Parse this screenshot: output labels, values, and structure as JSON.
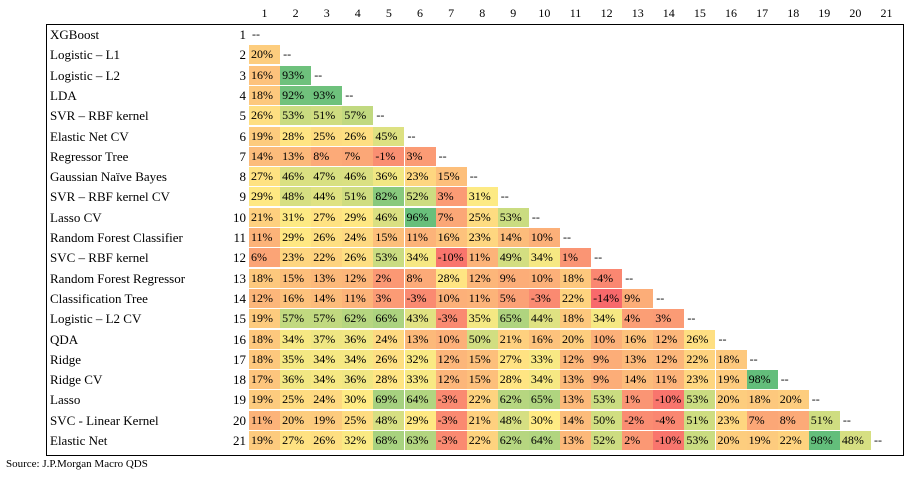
{
  "chart_data": {
    "type": "heatmap",
    "source": "Source: J.P.Morgan Macro QDS",
    "column_labels": [
      "1",
      "2",
      "3",
      "4",
      "5",
      "6",
      "7",
      "8",
      "9",
      "10",
      "11",
      "12",
      "13",
      "14",
      "15",
      "16",
      "17",
      "18",
      "19",
      "20",
      "21"
    ],
    "diagonal_marker": "--",
    "rows": [
      {
        "name": "XGBoost",
        "num": "1",
        "values": []
      },
      {
        "name": "Logistic – L1",
        "num": "2",
        "values": [
          "20%"
        ]
      },
      {
        "name": "Logistic – L2",
        "num": "3",
        "values": [
          "16%",
          "93%"
        ]
      },
      {
        "name": "LDA",
        "num": "4",
        "values": [
          "18%",
          "92%",
          "93%"
        ]
      },
      {
        "name": "SVR – RBF kernel",
        "num": "5",
        "values": [
          "26%",
          "53%",
          "51%",
          "57%"
        ]
      },
      {
        "name": "Elastic Net CV",
        "num": "6",
        "values": [
          "19%",
          "28%",
          "25%",
          "26%",
          "45%"
        ]
      },
      {
        "name": "Regressor Tree",
        "num": "7",
        "values": [
          "14%",
          "13%",
          "8%",
          "7%",
          "-1%",
          "3%"
        ]
      },
      {
        "name": "Gaussian Naïve Bayes",
        "num": "8",
        "values": [
          "27%",
          "46%",
          "47%",
          "46%",
          "36%",
          "23%",
          "15%"
        ]
      },
      {
        "name": "SVR – RBF kernel CV",
        "num": "9",
        "values": [
          "29%",
          "48%",
          "44%",
          "51%",
          "82%",
          "52%",
          "3%",
          "31%"
        ]
      },
      {
        "name": "Lasso CV",
        "num": "10",
        "values": [
          "21%",
          "31%",
          "27%",
          "29%",
          "46%",
          "96%",
          "7%",
          "25%",
          "53%"
        ]
      },
      {
        "name": "Random Forest Classifier",
        "num": "11",
        "values": [
          "11%",
          "29%",
          "26%",
          "24%",
          "15%",
          "11%",
          "16%",
          "23%",
          "14%",
          "10%"
        ]
      },
      {
        "name": "SVC – RBF kernel",
        "num": "12",
        "values": [
          "6%",
          "23%",
          "22%",
          "26%",
          "53%",
          "34%",
          "-10%",
          "11%",
          "49%",
          "34%",
          "1%"
        ]
      },
      {
        "name": "Random Forest Regressor",
        "num": "13",
        "values": [
          "18%",
          "15%",
          "13%",
          "12%",
          "2%",
          "8%",
          "28%",
          "12%",
          "9%",
          "10%",
          "18%",
          "-4%"
        ]
      },
      {
        "name": "Classification Tree",
        "num": "14",
        "values": [
          "12%",
          "16%",
          "14%",
          "11%",
          "3%",
          "-3%",
          "10%",
          "11%",
          "5%",
          "-3%",
          "22%",
          "-14%",
          "9%"
        ]
      },
      {
        "name": "Logistic – L2 CV",
        "num": "15",
        "values": [
          "19%",
          "57%",
          "57%",
          "62%",
          "66%",
          "43%",
          "-3%",
          "35%",
          "65%",
          "44%",
          "18%",
          "34%",
          "4%",
          "3%"
        ]
      },
      {
        "name": "QDA",
        "num": "16",
        "values": [
          "18%",
          "34%",
          "37%",
          "36%",
          "24%",
          "13%",
          "10%",
          "50%",
          "21%",
          "16%",
          "20%",
          "10%",
          "16%",
          "12%",
          "26%"
        ]
      },
      {
        "name": "Ridge",
        "num": "17",
        "values": [
          "18%",
          "35%",
          "34%",
          "34%",
          "26%",
          "32%",
          "12%",
          "15%",
          "27%",
          "33%",
          "12%",
          "9%",
          "13%",
          "12%",
          "22%",
          "18%"
        ]
      },
      {
        "name": "Ridge CV",
        "num": "18",
        "values": [
          "17%",
          "36%",
          "34%",
          "36%",
          "28%",
          "33%",
          "12%",
          "15%",
          "28%",
          "34%",
          "13%",
          "9%",
          "14%",
          "11%",
          "23%",
          "19%",
          "98%"
        ]
      },
      {
        "name": "Lasso",
        "num": "19",
        "values": [
          "19%",
          "25%",
          "24%",
          "30%",
          "69%",
          "64%",
          "-3%",
          "22%",
          "62%",
          "65%",
          "13%",
          "53%",
          "1%",
          "-10%",
          "53%",
          "20%",
          "18%",
          "20%"
        ]
      },
      {
        "name": "SVC - Linear Kernel",
        "num": "20",
        "values": [
          "11%",
          "20%",
          "19%",
          "25%",
          "48%",
          "29%",
          "-3%",
          "21%",
          "48%",
          "30%",
          "14%",
          "50%",
          "-2%",
          "-4%",
          "51%",
          "23%",
          "7%",
          "8%",
          "51%"
        ]
      },
      {
        "name": "Elastic Net",
        "num": "21",
        "values": [
          "19%",
          "27%",
          "26%",
          "32%",
          "68%",
          "63%",
          "-3%",
          "22%",
          "62%",
          "64%",
          "13%",
          "52%",
          "2%",
          "-10%",
          "53%",
          "20%",
          "19%",
          "22%",
          "98%",
          "48%"
        ]
      }
    ],
    "color_scale": {
      "low": "#f8696b",
      "mid": "#ffeb84",
      "high": "#63be7b"
    }
  }
}
